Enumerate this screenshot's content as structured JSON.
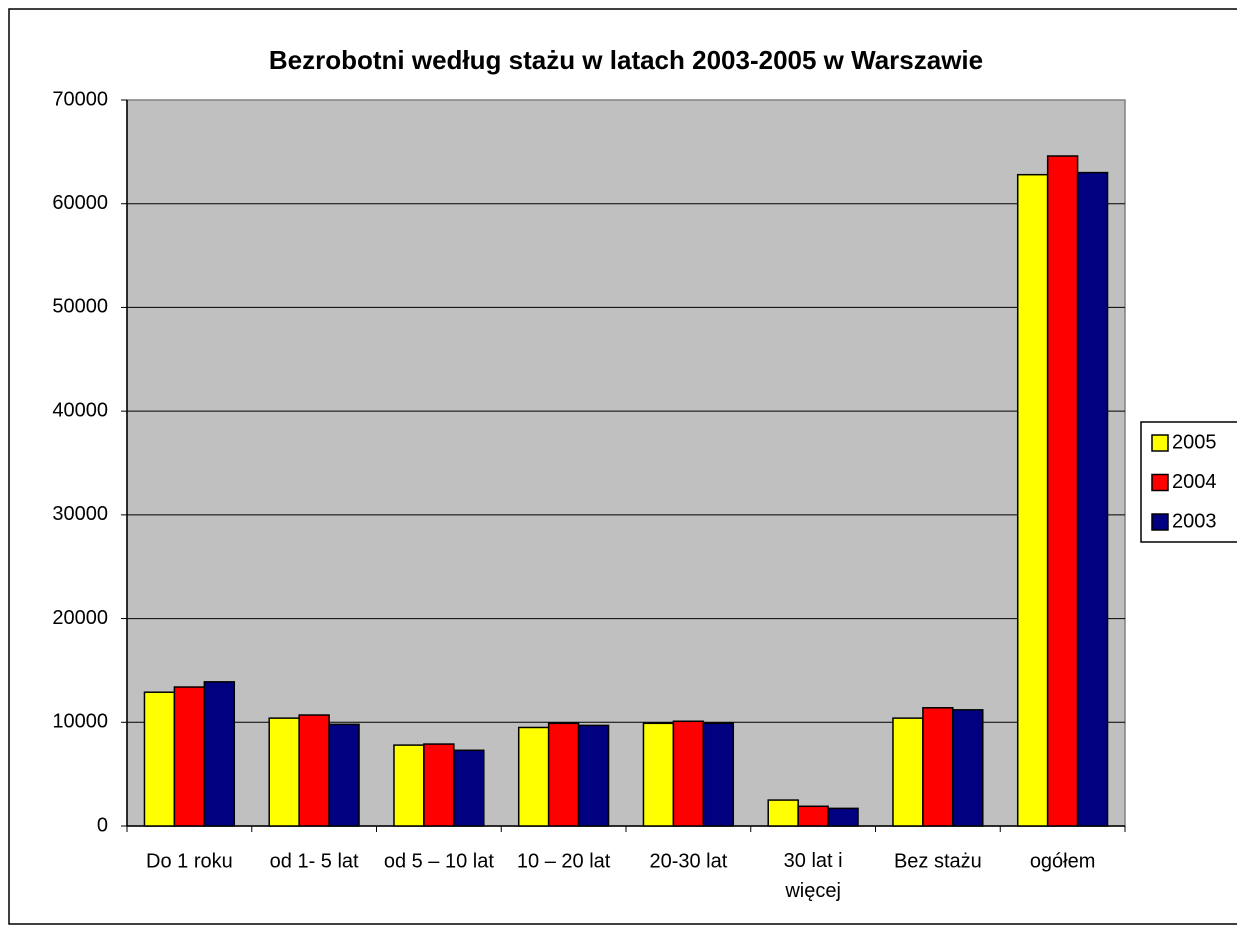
{
  "chart_data": {
    "type": "bar",
    "title": "Bezrobotni według stażu w latach 2003-2005 w Warszawie",
    "categories": [
      "Do 1 roku",
      "od 1- 5 lat",
      "od 5 – 10 lat",
      "10 – 20 lat",
      "20-30 lat",
      "30 lat i więcej",
      "Bez stażu",
      "ogółem"
    ],
    "series": [
      {
        "name": "2005",
        "color": "#ffff00",
        "values": [
          12900,
          10400,
          7800,
          9500,
          9900,
          2500,
          10400,
          62800
        ]
      },
      {
        "name": "2004",
        "color": "#ff0000",
        "values": [
          13400,
          10700,
          7900,
          9900,
          10100,
          1900,
          11400,
          64600
        ]
      },
      {
        "name": "2003",
        "color": "#000080",
        "values": [
          13900,
          9800,
          7300,
          9700,
          9900,
          1700,
          11200,
          63000
        ]
      }
    ],
    "ylim": [
      0,
      70000
    ],
    "yticks": [
      0,
      10000,
      20000,
      30000,
      40000,
      50000,
      60000,
      70000
    ],
    "grid": true,
    "legend": "right"
  }
}
